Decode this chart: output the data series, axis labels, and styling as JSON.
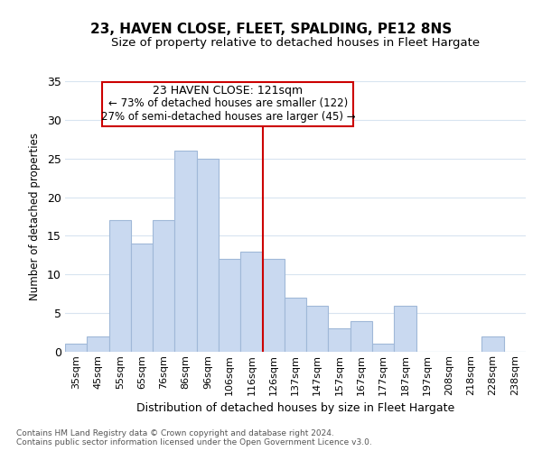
{
  "title": "23, HAVEN CLOSE, FLEET, SPALDING, PE12 8NS",
  "subtitle": "Size of property relative to detached houses in Fleet Hargate",
  "xlabel": "Distribution of detached houses by size in Fleet Hargate",
  "ylabel": "Number of detached properties",
  "bar_labels": [
    "35sqm",
    "45sqm",
    "55sqm",
    "65sqm",
    "76sqm",
    "86sqm",
    "96sqm",
    "106sqm",
    "116sqm",
    "126sqm",
    "137sqm",
    "147sqm",
    "157sqm",
    "167sqm",
    "177sqm",
    "187sqm",
    "197sqm",
    "208sqm",
    "218sqm",
    "228sqm",
    "238sqm"
  ],
  "bar_values": [
    1,
    2,
    17,
    14,
    17,
    26,
    25,
    12,
    13,
    12,
    7,
    6,
    3,
    4,
    1,
    6,
    0,
    0,
    0,
    2,
    0
  ],
  "bar_color": "#c9d9f0",
  "bar_edge_color": "#a0b8d8",
  "ylim": [
    0,
    35
  ],
  "yticks": [
    0,
    5,
    10,
    15,
    20,
    25,
    30,
    35
  ],
  "annotation_line1": "23 HAVEN CLOSE: 121sqm",
  "annotation_line2": "← 73% of detached houses are smaller (122)",
  "annotation_line3": "27% of semi-detached houses are larger (45) →",
  "vline_x_index": 8.5,
  "vline_color": "#cc0000",
  "box_edge_color": "#cc0000",
  "footnote": "Contains HM Land Registry data © Crown copyright and database right 2024.\nContains public sector information licensed under the Open Government Licence v3.0.",
  "background_color": "#ffffff",
  "grid_color": "#d8e4f0"
}
